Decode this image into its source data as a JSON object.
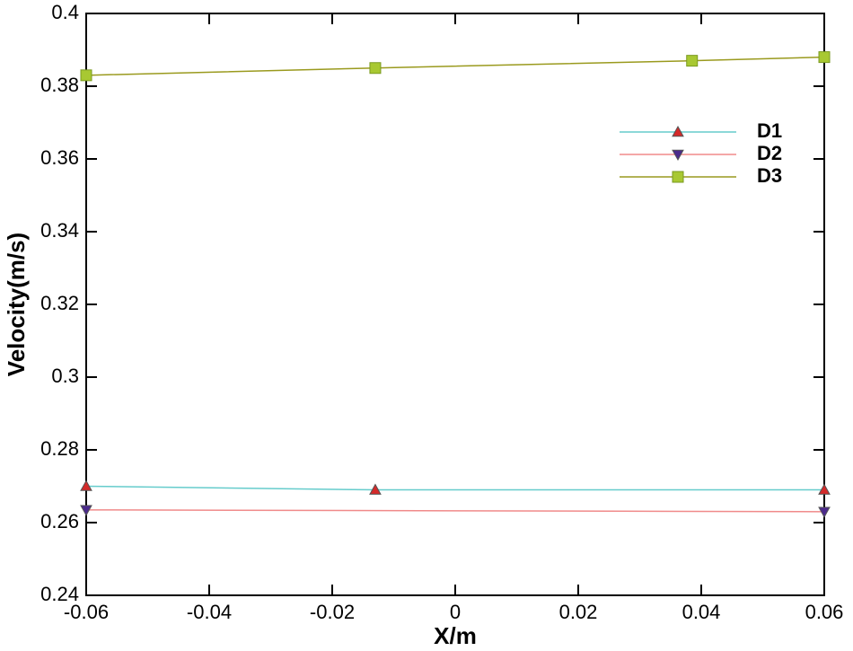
{
  "chart_data": {
    "type": "line",
    "x_label": "X/m",
    "y_label": "Velocity(m/s)",
    "xlim": [
      -0.06,
      0.06
    ],
    "xticks": [
      -0.06,
      -0.04,
      -0.02,
      0,
      0.02,
      0.04,
      0.06
    ],
    "ylim": [
      0.24,
      0.4
    ],
    "yticks": [
      0.24,
      0.26,
      0.28,
      0.3,
      0.32,
      0.34,
      0.36,
      0.38,
      0.4
    ],
    "series": [
      {
        "name": "D1",
        "color": "#66cccc",
        "marker": "triangle-up",
        "marker_color": "#d42a2a",
        "x": [
          -0.06,
          -0.013,
          0.06
        ],
        "values": [
          0.27,
          0.269,
          0.269
        ]
      },
      {
        "name": "D2",
        "color": "#f08a8a",
        "marker": "triangle-down",
        "marker_color": "#4b2a8c",
        "x": [
          -0.06,
          0.06
        ],
        "values": [
          0.2635,
          0.263
        ]
      },
      {
        "name": "D3",
        "color": "#9a9a1e",
        "marker": "square",
        "marker_color": "#a8c832",
        "x": [
          -0.06,
          -0.013,
          0.0385,
          0.06
        ],
        "values": [
          0.383,
          0.385,
          0.387,
          0.388
        ]
      }
    ]
  }
}
